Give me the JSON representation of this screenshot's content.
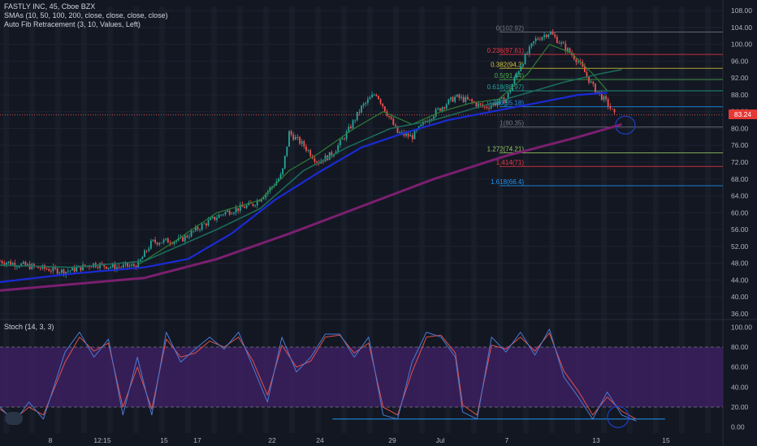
{
  "header": {
    "title": "FASTLY INC, 45, Cboe BZX",
    "sma_legend": "SMAs (10, 50, 100, 200, close, close, close, close)",
    "fib_legend": "Auto Fib Retracement (3, 10, Values, Left)",
    "stoch_legend": "Stoch (14, 3, 3)"
  },
  "last_price": "83.24",
  "colors": {
    "background": "#131722",
    "grid": "#1e2230",
    "candle_up": "#26a69a",
    "candle_down": "#ef5350",
    "sma10": "#2e7d32",
    "sma50": "#1b6b5a",
    "sma100": "#1a2bd6",
    "sma200": "#7b1f6f",
    "stoch_k": "#4a7bd4",
    "stoch_d": "#e0514a",
    "stoch_band": "#3a1f5c",
    "highlight_circle": "#1e40c8",
    "price_tag": "#e53935"
  },
  "chart_data": [
    {
      "type": "line",
      "title": "FASTLY INC, 45, Cboe BZX",
      "xlabel": "",
      "ylabel": "",
      "ylim": [
        35,
        109
      ],
      "x_ticks": [
        "8",
        "12:15",
        "15",
        "17",
        "22",
        "24",
        "29",
        "Jul",
        "7",
        "13",
        "15"
      ],
      "y_ticks": [
        "108.00",
        "104.00",
        "100.00",
        "96.00",
        "92.00",
        "88.00",
        "84.00",
        "80.00",
        "76.00",
        "72.00",
        "68.00",
        "64.00",
        "60.00",
        "56.00",
        "52.00",
        "48.00",
        "44.00",
        "40.00",
        "36.00"
      ],
      "x_range": [
        0,
        100
      ],
      "price_path": [
        [
          0,
          48.5
        ],
        [
          5,
          47
        ],
        [
          9,
          46
        ],
        [
          13,
          47.8
        ],
        [
          16,
          47
        ],
        [
          19,
          47.5
        ],
        [
          21,
          53
        ],
        [
          25,
          53.5
        ],
        [
          28,
          57
        ],
        [
          31,
          60
        ],
        [
          35,
          62
        ],
        [
          37,
          65
        ],
        [
          39,
          69
        ],
        [
          40,
          79
        ],
        [
          42,
          76
        ],
        [
          44,
          72
        ],
        [
          46,
          74
        ],
        [
          48,
          79
        ],
        [
          50,
          85
        ],
        [
          52,
          88.5
        ],
        [
          55,
          79
        ],
        [
          57,
          78
        ],
        [
          59,
          82
        ],
        [
          61,
          85
        ],
        [
          63,
          87.5
        ],
        [
          65,
          86.5
        ],
        [
          67,
          85
        ],
        [
          70,
          87
        ],
        [
          72,
          95
        ],
        [
          74,
          101
        ],
        [
          76,
          102.9
        ],
        [
          78,
          99.5
        ],
        [
          80,
          96
        ],
        [
          82,
          90
        ],
        [
          84,
          86
        ],
        [
          85,
          83.2
        ]
      ],
      "series": [
        {
          "name": "SMA 10",
          "values": [
            [
              19,
              47.5
            ],
            [
              24,
              53
            ],
            [
              30,
              60
            ],
            [
              36,
              63
            ],
            [
              40,
              70
            ],
            [
              44,
              74
            ],
            [
              49,
              80
            ],
            [
              53,
              84
            ],
            [
              57,
              81
            ],
            [
              61,
              84
            ],
            [
              65,
              86
            ],
            [
              69,
              87
            ],
            [
              73,
              93
            ],
            [
              76,
              100
            ],
            [
              79,
              98
            ],
            [
              82,
              93
            ],
            [
              84,
              89
            ]
          ]
        },
        {
          "name": "SMA 50",
          "values": [
            [
              0,
              47.5
            ],
            [
              10,
              47
            ],
            [
              20,
              48.5
            ],
            [
              30,
              56
            ],
            [
              36,
              61
            ],
            [
              42,
              70
            ],
            [
              48,
              75.5
            ],
            [
              54,
              80
            ],
            [
              60,
              82
            ],
            [
              66,
              85
            ],
            [
              72,
              88
            ],
            [
              78,
              91
            ],
            [
              83,
              93
            ],
            [
              86,
              94
            ]
          ]
        },
        {
          "name": "SMA 100",
          "values": [
            [
              0,
              43.5
            ],
            [
              10,
              45.5
            ],
            [
              20,
              47
            ],
            [
              26,
              49
            ],
            [
              32,
              55
            ],
            [
              38,
              63
            ],
            [
              44,
              69.5
            ],
            [
              50,
              75.5
            ],
            [
              56,
              79
            ],
            [
              62,
              82
            ],
            [
              68,
              84
            ],
            [
              74,
              86
            ],
            [
              80,
              88
            ],
            [
              84,
              88.5
            ]
          ]
        },
        {
          "name": "SMA 200",
          "values": [
            [
              0,
              41.5
            ],
            [
              10,
              43
            ],
            [
              20,
              44.5
            ],
            [
              30,
              49
            ],
            [
              40,
              55
            ],
            [
              50,
              61.5
            ],
            [
              60,
              68
            ],
            [
              70,
              73.5
            ],
            [
              80,
              78
            ],
            [
              86,
              81
            ]
          ]
        }
      ],
      "fib_levels": [
        {
          "label": "0(102.92)",
          "price": 102.92,
          "color": "#787b86"
        },
        {
          "label": "0.236(97.61)",
          "price": 97.61,
          "color": "#f23645"
        },
        {
          "label": "0.382(94.3)",
          "price": 94.3,
          "color": "#d6c83a"
        },
        {
          "label": "0.5(91.64)",
          "price": 91.64,
          "color": "#4caf50"
        },
        {
          "label": "0.618(88.97)",
          "price": 88.97,
          "color": "#26a69a"
        },
        {
          "label": "0.786(85.18)",
          "price": 85.18,
          "color": "#2196f3"
        },
        {
          "label": "1(80.35)",
          "price": 80.35,
          "color": "#787b86"
        },
        {
          "label": "1.272(74.21)",
          "price": 74.21,
          "color": "#9ccc65"
        },
        {
          "label": "1.414(71)",
          "price": 71.0,
          "color": "#f23645"
        },
        {
          "label": "1.618(66.4)",
          "price": 66.4,
          "color": "#2196f3"
        }
      ],
      "last_price": 83.24,
      "grid": true
    },
    {
      "type": "line",
      "title": "Stoch (14, 3, 3)",
      "ylim": [
        -6,
        106
      ],
      "y_ticks": [
        "100.00",
        "80.00",
        "60.00",
        "40.00",
        "20.00",
        "0.00"
      ],
      "band": [
        20,
        80
      ],
      "support_line": 8,
      "series": [
        {
          "name": "%K",
          "values": [
            [
              0,
              20
            ],
            [
              2,
              5
            ],
            [
              4,
              25
            ],
            [
              6,
              8
            ],
            [
              9,
              75
            ],
            [
              11,
              95
            ],
            [
              13,
              70
            ],
            [
              15,
              88
            ],
            [
              17,
              12
            ],
            [
              19,
              70
            ],
            [
              21,
              12
            ],
            [
              23,
              95
            ],
            [
              25,
              65
            ],
            [
              27,
              78
            ],
            [
              29,
              90
            ],
            [
              31,
              78
            ],
            [
              33,
              95
            ],
            [
              35,
              60
            ],
            [
              37,
              25
            ],
            [
              39,
              90
            ],
            [
              41,
              55
            ],
            [
              43,
              70
            ],
            [
              45,
              93
            ],
            [
              47,
              93
            ],
            [
              49,
              70
            ],
            [
              51,
              90
            ],
            [
              53,
              12
            ],
            [
              55,
              8
            ],
            [
              57,
              65
            ],
            [
              59,
              95
            ],
            [
              61,
              90
            ],
            [
              63,
              70
            ],
            [
              64,
              15
            ],
            [
              66,
              8
            ],
            [
              68,
              90
            ],
            [
              70,
              75
            ],
            [
              72,
              95
            ],
            [
              74,
              72
            ],
            [
              76,
              98
            ],
            [
              78,
              50
            ],
            [
              80,
              30
            ],
            [
              82,
              8
            ],
            [
              84,
              35
            ],
            [
              86,
              12
            ],
            [
              88,
              6
            ]
          ]
        },
        {
          "name": "%D",
          "values": [
            [
              0,
              18
            ],
            [
              2,
              8
            ],
            [
              4,
              20
            ],
            [
              6,
              12
            ],
            [
              9,
              65
            ],
            [
              11,
              90
            ],
            [
              13,
              76
            ],
            [
              15,
              84
            ],
            [
              17,
              20
            ],
            [
              19,
              60
            ],
            [
              21,
              18
            ],
            [
              23,
              88
            ],
            [
              25,
              70
            ],
            [
              27,
              74
            ],
            [
              29,
              86
            ],
            [
              31,
              80
            ],
            [
              33,
              90
            ],
            [
              35,
              66
            ],
            [
              37,
              32
            ],
            [
              39,
              82
            ],
            [
              41,
              60
            ],
            [
              43,
              66
            ],
            [
              45,
              90
            ],
            [
              47,
              92
            ],
            [
              49,
              74
            ],
            [
              51,
              84
            ],
            [
              53,
              20
            ],
            [
              55,
              12
            ],
            [
              57,
              55
            ],
            [
              59,
              90
            ],
            [
              61,
              92
            ],
            [
              63,
              74
            ],
            [
              64,
              22
            ],
            [
              66,
              12
            ],
            [
              68,
              82
            ],
            [
              70,
              78
            ],
            [
              72,
              90
            ],
            [
              74,
              76
            ],
            [
              76,
              94
            ],
            [
              78,
              56
            ],
            [
              80,
              36
            ],
            [
              82,
              12
            ],
            [
              84,
              30
            ],
            [
              86,
              16
            ],
            [
              88,
              8
            ]
          ]
        }
      ]
    }
  ]
}
